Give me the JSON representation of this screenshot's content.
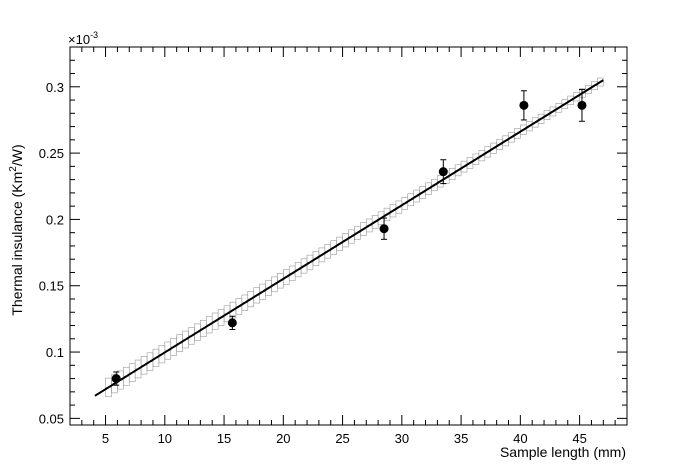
{
  "chart_data": {
    "type": "scatter",
    "xlabel": "Sample length (mm)",
    "ylabel_main": "Thermal insulance (Km",
    "ylabel_sup": "2",
    "ylabel_end": "/W)",
    "exponent_base": "×10",
    "exponent_power": "-3",
    "xlim": [
      2,
      49
    ],
    "ylim": [
      0.045,
      0.33
    ],
    "x_ticks": [
      5,
      10,
      15,
      20,
      25,
      30,
      35,
      40,
      45
    ],
    "y_ticks": [
      0.05,
      0.1,
      0.15,
      0.2,
      0.25,
      0.3
    ],
    "points": [
      {
        "x": 5.9,
        "y": 0.08,
        "err": 0.005
      },
      {
        "x": 15.7,
        "y": 0.122,
        "err": 0.005
      },
      {
        "x": 28.5,
        "y": 0.193,
        "err": 0.008
      },
      {
        "x": 33.5,
        "y": 0.236,
        "err": 0.009
      },
      {
        "x": 40.3,
        "y": 0.286,
        "err": 0.011
      },
      {
        "x": 45.2,
        "y": 0.286,
        "err": 0.012
      }
    ],
    "fit": {
      "x": [
        4.1,
        47.0
      ],
      "y": [
        0.067,
        0.305
      ]
    },
    "band": {
      "x_start": 5.0,
      "x_end": 47.0,
      "half_width_start": 0.007,
      "half_width_end": 0.003
    },
    "colors": {
      "line": "#000000",
      "points": "#000000",
      "band": "#9a9a9a"
    }
  }
}
